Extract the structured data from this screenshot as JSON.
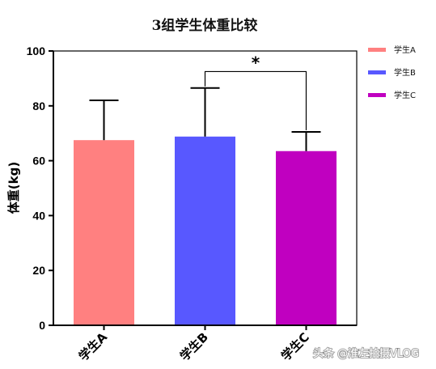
{
  "chart_data": {
    "type": "bar",
    "title": "3组学生体重比较",
    "ylabel": "体重(kg)",
    "xlabel": "",
    "categories": [
      "学生A",
      "学生B",
      "学生C"
    ],
    "values": [
      67.5,
      68.8,
      63.5
    ],
    "error_upper": [
      82,
      86.5,
      70.5
    ],
    "ylim": [
      0,
      100
    ],
    "yticks": [
      "0",
      "20",
      "40",
      "60",
      "80",
      "100"
    ],
    "colors": [
      "#FF8080",
      "#5858FF",
      "#C000C0"
    ],
    "legend": {
      "placement": "top-right",
      "entries": [
        "学生A",
        "学生B",
        "学生C"
      ]
    },
    "annotations": [
      {
        "type": "significance",
        "between": [
          "学生B",
          "学生C"
        ],
        "label": "*"
      }
    ],
    "grid": false
  },
  "watermark": "头条 @淮左拍摄VLOG"
}
